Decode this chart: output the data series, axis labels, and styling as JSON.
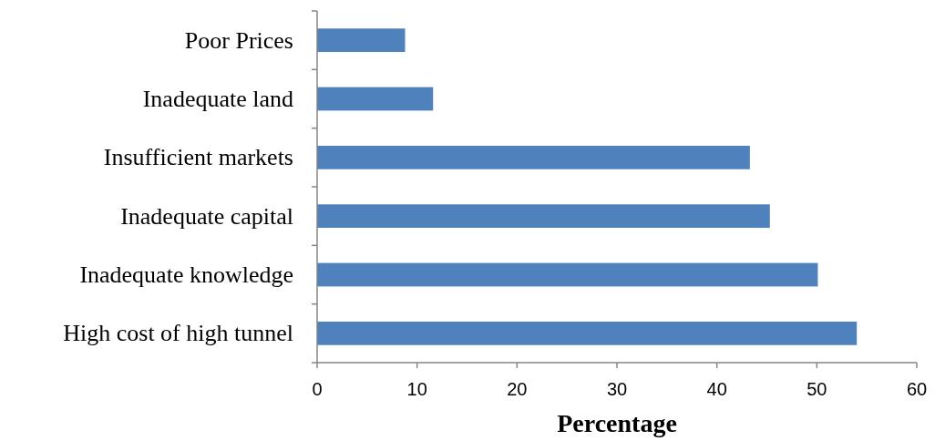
{
  "chart_data": {
    "type": "bar",
    "orientation": "horizontal",
    "xlabel": "Percentage",
    "categories": [
      "Poor Prices",
      "Inadequate land",
      "Insufficient markets",
      "Inadequate capital",
      "Inadequate knowledge",
      "High cost of high tunnel"
    ],
    "values": [
      8.8,
      11.6,
      43.3,
      45.3,
      50.1,
      54.0
    ],
    "color": "#4f81bd",
    "xlim": [
      0,
      60
    ],
    "xticks": [
      0,
      10,
      20,
      30,
      40,
      50,
      60
    ],
    "grid": false
  }
}
